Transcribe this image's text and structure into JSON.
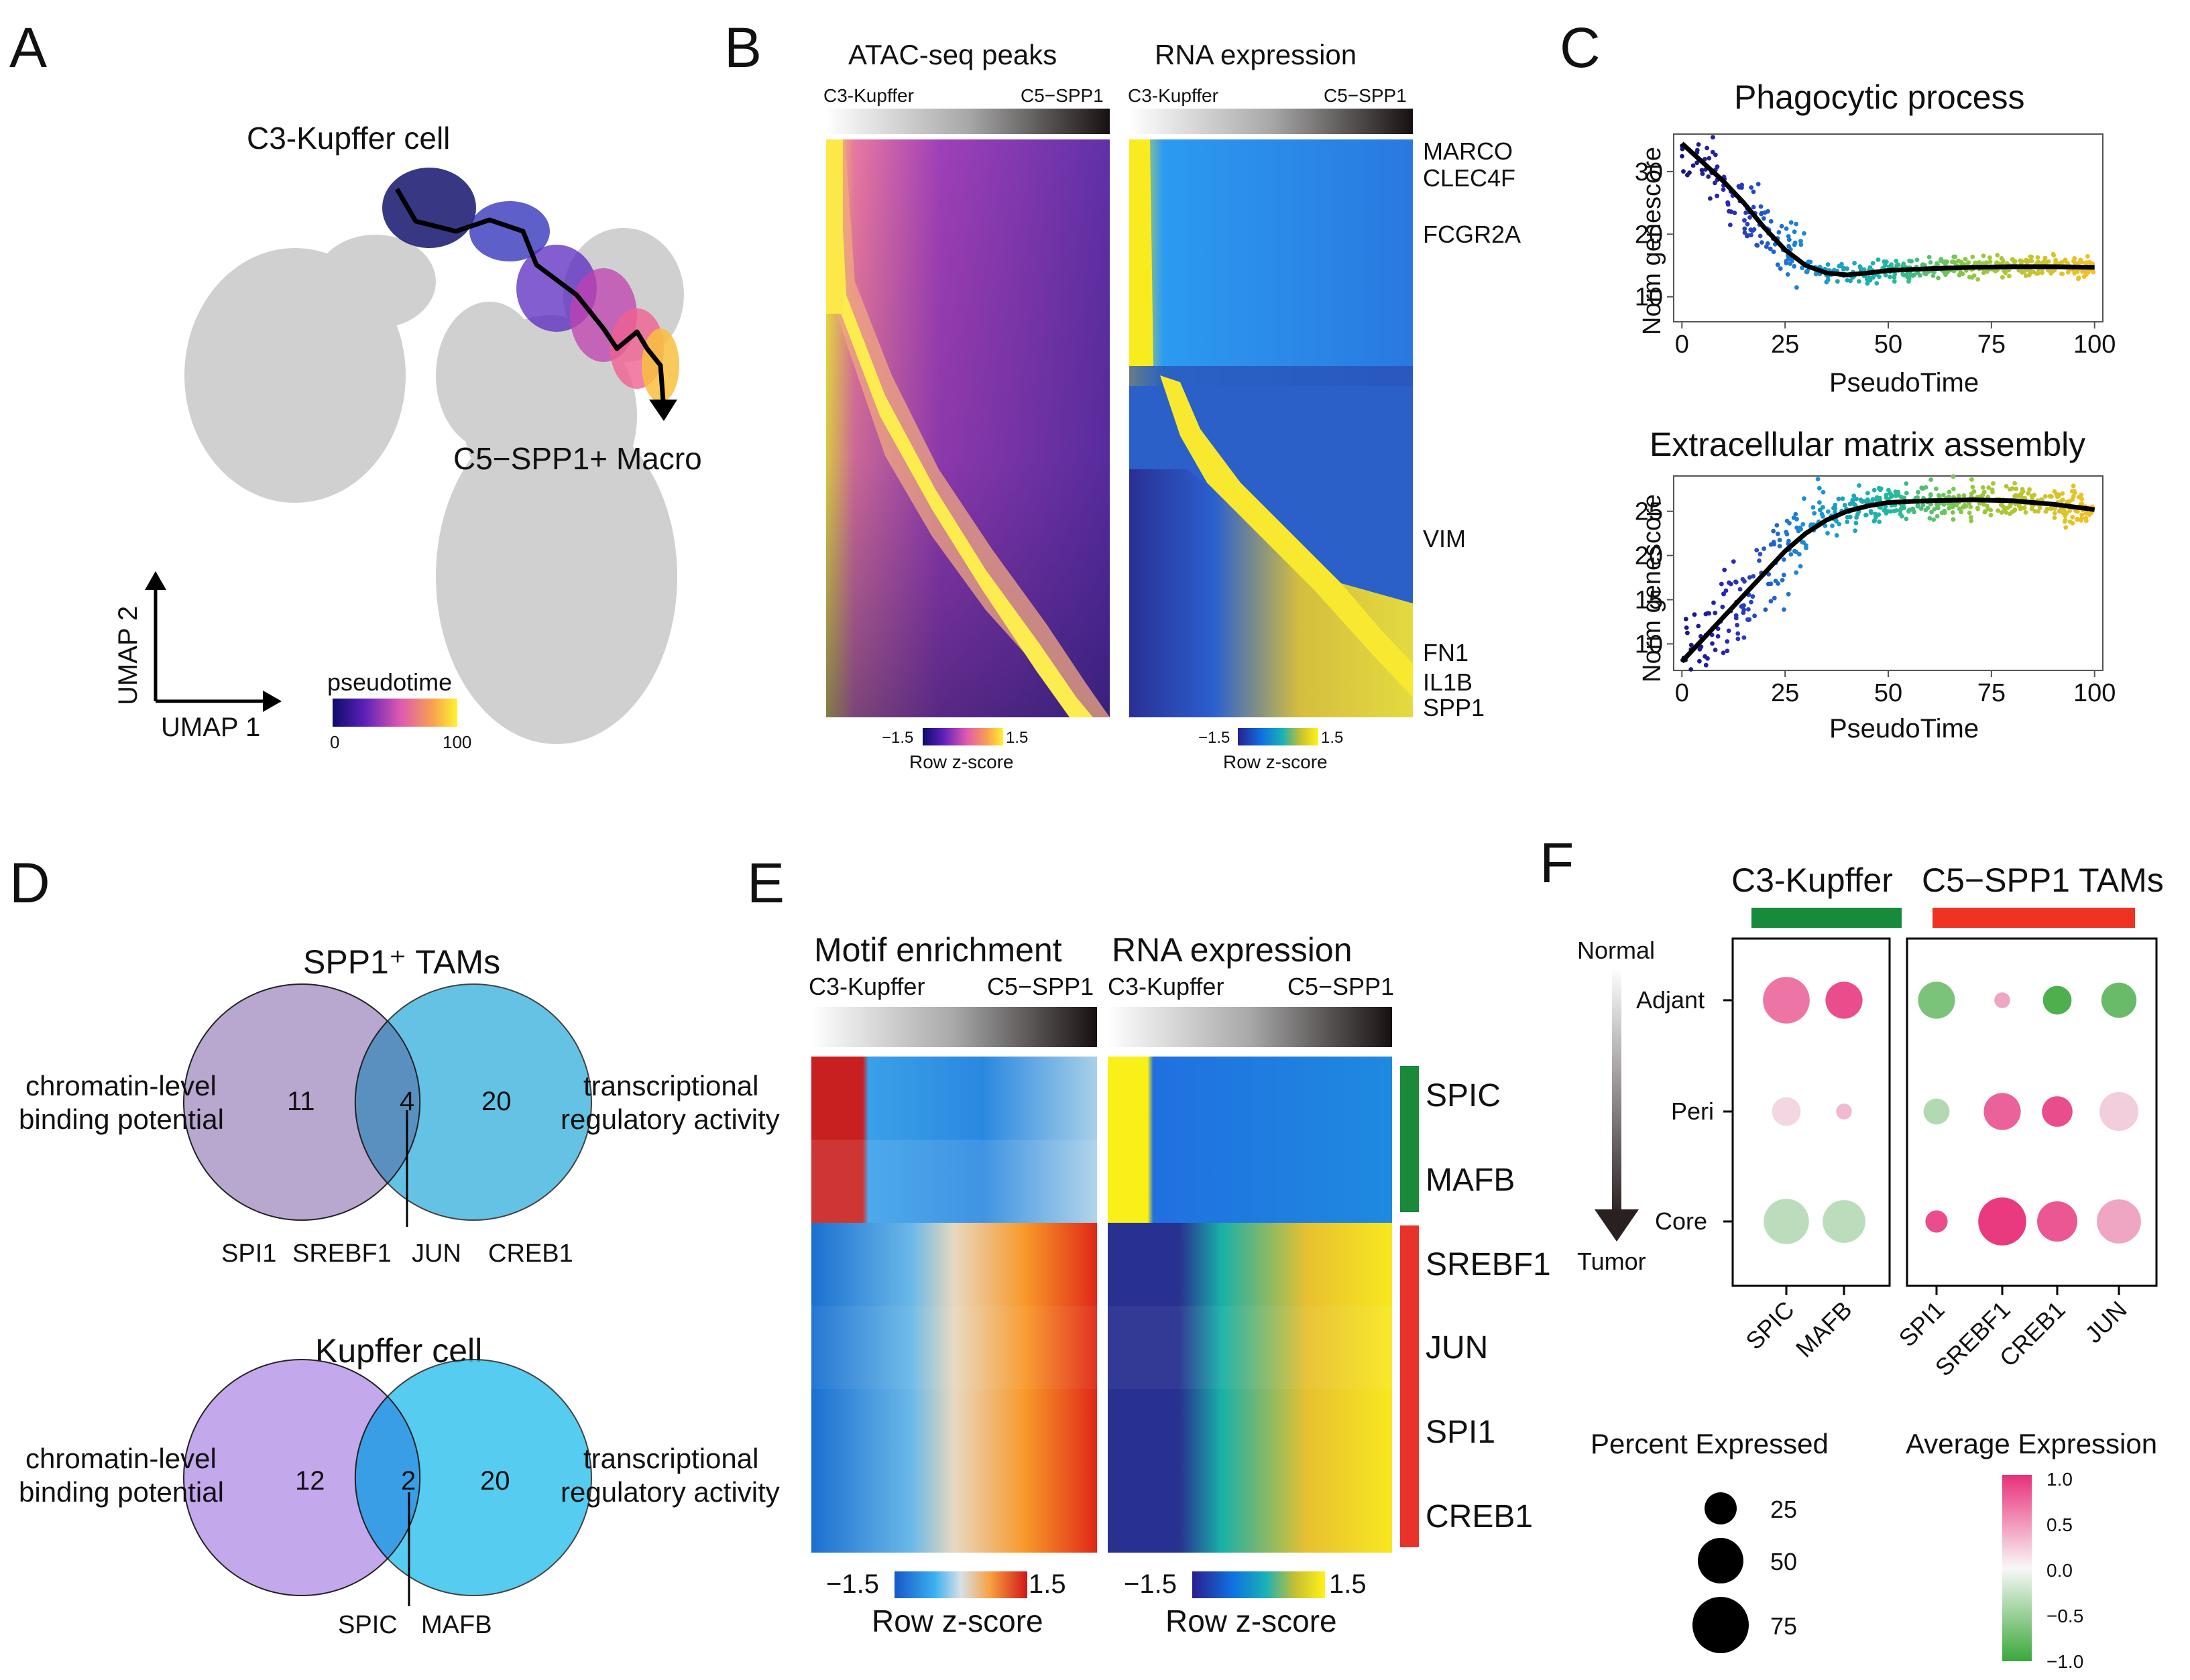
{
  "panels": {
    "A": {
      "letter": "A",
      "label_start": "C3-Kupffer cell",
      "label_end": "C5−SPP1+ Macro",
      "axis_x": "UMAP 1",
      "axis_y": "UMAP 2",
      "legend_title": "pseudotime",
      "legend_min": "0",
      "legend_max": "100",
      "trajectory_color": "#000000",
      "background_cell_color": "#d0d0d0"
    },
    "B": {
      "letter": "B",
      "left_title": "ATAC-seq peaks",
      "right_title": "RNA expression",
      "bar_left_label": "C3-Kupffer",
      "bar_right_label": "C5−SPP1",
      "genes": [
        "MARCO",
        "CLEC4F",
        "FCGR2A",
        "VIM",
        "FN1",
        "IL1B",
        "SPP1"
      ],
      "scale_min": "−1.5",
      "scale_max": "1.5",
      "scale_title": "Row z-score"
    },
    "C": {
      "letter": "C",
      "xlabel": "PseudoTime",
      "ylabel": "Norm genescore"
    },
    "D": {
      "letter": "D",
      "left_label_line1": "chromatin-level",
      "left_label_line2": "binding potential",
      "right_label_line1": "transcriptional",
      "right_label_line2": "regulatory activity",
      "venn": [
        {
          "title": "SPP1⁺ TAMs",
          "left_count": "11",
          "overlap_count": "4",
          "right_count": "20",
          "overlap_genes": [
            "SPI1",
            "SREBF1",
            "JUN",
            "CREB1"
          ],
          "left_color": "#b8a8d0",
          "right_color": "#4ab8e0",
          "overlap_color": "#5a8fc0"
        },
        {
          "title": "Kupffer cell",
          "left_count": "12",
          "overlap_count": "2",
          "right_count": "20",
          "overlap_genes": [
            "SPIC",
            "MAFB"
          ],
          "left_color": "#c4a8ec",
          "right_color": "#38c4ee",
          "overlap_color": "#3a9ee6"
        }
      ]
    },
    "E": {
      "letter": "E",
      "left_title": "Motif enrichment",
      "right_title": "RNA expression",
      "bar_left_label": "C3-Kupffer",
      "bar_right_label": "C5−SPP1",
      "genes": [
        "SPIC",
        "MAFB",
        "SREBF1",
        "JUN",
        "SPI1",
        "CREB1"
      ],
      "group_colors": [
        "#1a8a3a",
        "#e8332a"
      ],
      "scale_min": "−1.5",
      "scale_max": "1.5",
      "scale_title": "Row z-score"
    },
    "F": {
      "letter": "F",
      "group1": "C3-Kupffer",
      "group2": "C5−SPP1 TAMs",
      "group1_color": "#178a3c",
      "group2_color": "#ee3322",
      "arrow_top": "Normal",
      "arrow_bottom": "Tumor",
      "rows": [
        "Adjant",
        "Peri",
        "Core"
      ],
      "columns": [
        "SPIC",
        "MAFB",
        "SPI1",
        "SREBF1",
        "CREB1",
        "JUN"
      ],
      "size_legend_title": "Percent Expressed",
      "size_legend_values": [
        "25",
        "50",
        "75"
      ],
      "color_legend_title": "Average Expression",
      "color_legend_ticks": [
        "1.0",
        "0.5",
        "0.0",
        "−0.5",
        "−1.0"
      ]
    }
  },
  "chart_data": [
    {
      "type": "scatter",
      "title": "Phagocytic process",
      "xlabel": "PseudoTime",
      "ylabel": "Norm genescore",
      "xlim": [
        -2,
        102
      ],
      "ylim": [
        6,
        36
      ],
      "xticks": [
        0,
        25,
        50,
        75,
        100
      ],
      "yticks": [
        10,
        20,
        30
      ],
      "fit_x": [
        0,
        5,
        10,
        15,
        20,
        25,
        30,
        35,
        40,
        45,
        50,
        60,
        70,
        80,
        90,
        100
      ],
      "fit_y": [
        34.5,
        31.5,
        28.5,
        25,
        21,
        17.5,
        15,
        13.8,
        13.5,
        13.8,
        14.2,
        14.5,
        14.7,
        14.8,
        14.8,
        14.7
      ]
    },
    {
      "type": "scatter",
      "title": "Extracellular matrix assembly",
      "xlabel": "PseudoTime",
      "ylabel": "Norm genescore",
      "xlim": [
        -2,
        102
      ],
      "ylim": [
        7,
        29
      ],
      "xticks": [
        0,
        25,
        50,
        75,
        100
      ],
      "yticks": [
        10,
        15,
        20,
        25
      ],
      "fit_x": [
        0,
        5,
        10,
        15,
        20,
        25,
        30,
        35,
        40,
        45,
        50,
        60,
        70,
        80,
        90,
        100
      ],
      "fit_y": [
        8,
        10.5,
        13,
        15.5,
        18,
        20.5,
        22.5,
        24,
        25,
        25.6,
        26,
        26.2,
        26.3,
        26.2,
        25.8,
        25.2
      ]
    },
    {
      "type": "dotplot",
      "rows": [
        "Adjant",
        "Peri",
        "Core"
      ],
      "columns": [
        "SPIC",
        "MAFB",
        "SPI1",
        "SREBF1",
        "CREB1",
        "JUN"
      ],
      "percent": [
        [
          60,
          45,
          45,
          12,
          32,
          42
        ],
        [
          32,
          12,
          28,
          45,
          35,
          48
        ],
        [
          58,
          54,
          22,
          62,
          50,
          56
        ]
      ],
      "avg_expression": [
        [
          0.65,
          0.85,
          -0.65,
          0.4,
          -0.9,
          -0.75
        ],
        [
          0.15,
          0.3,
          -0.35,
          0.75,
          0.85,
          0.2
        ],
        [
          -0.3,
          -0.3,
          0.85,
          0.95,
          0.8,
          0.4
        ]
      ]
    }
  ]
}
